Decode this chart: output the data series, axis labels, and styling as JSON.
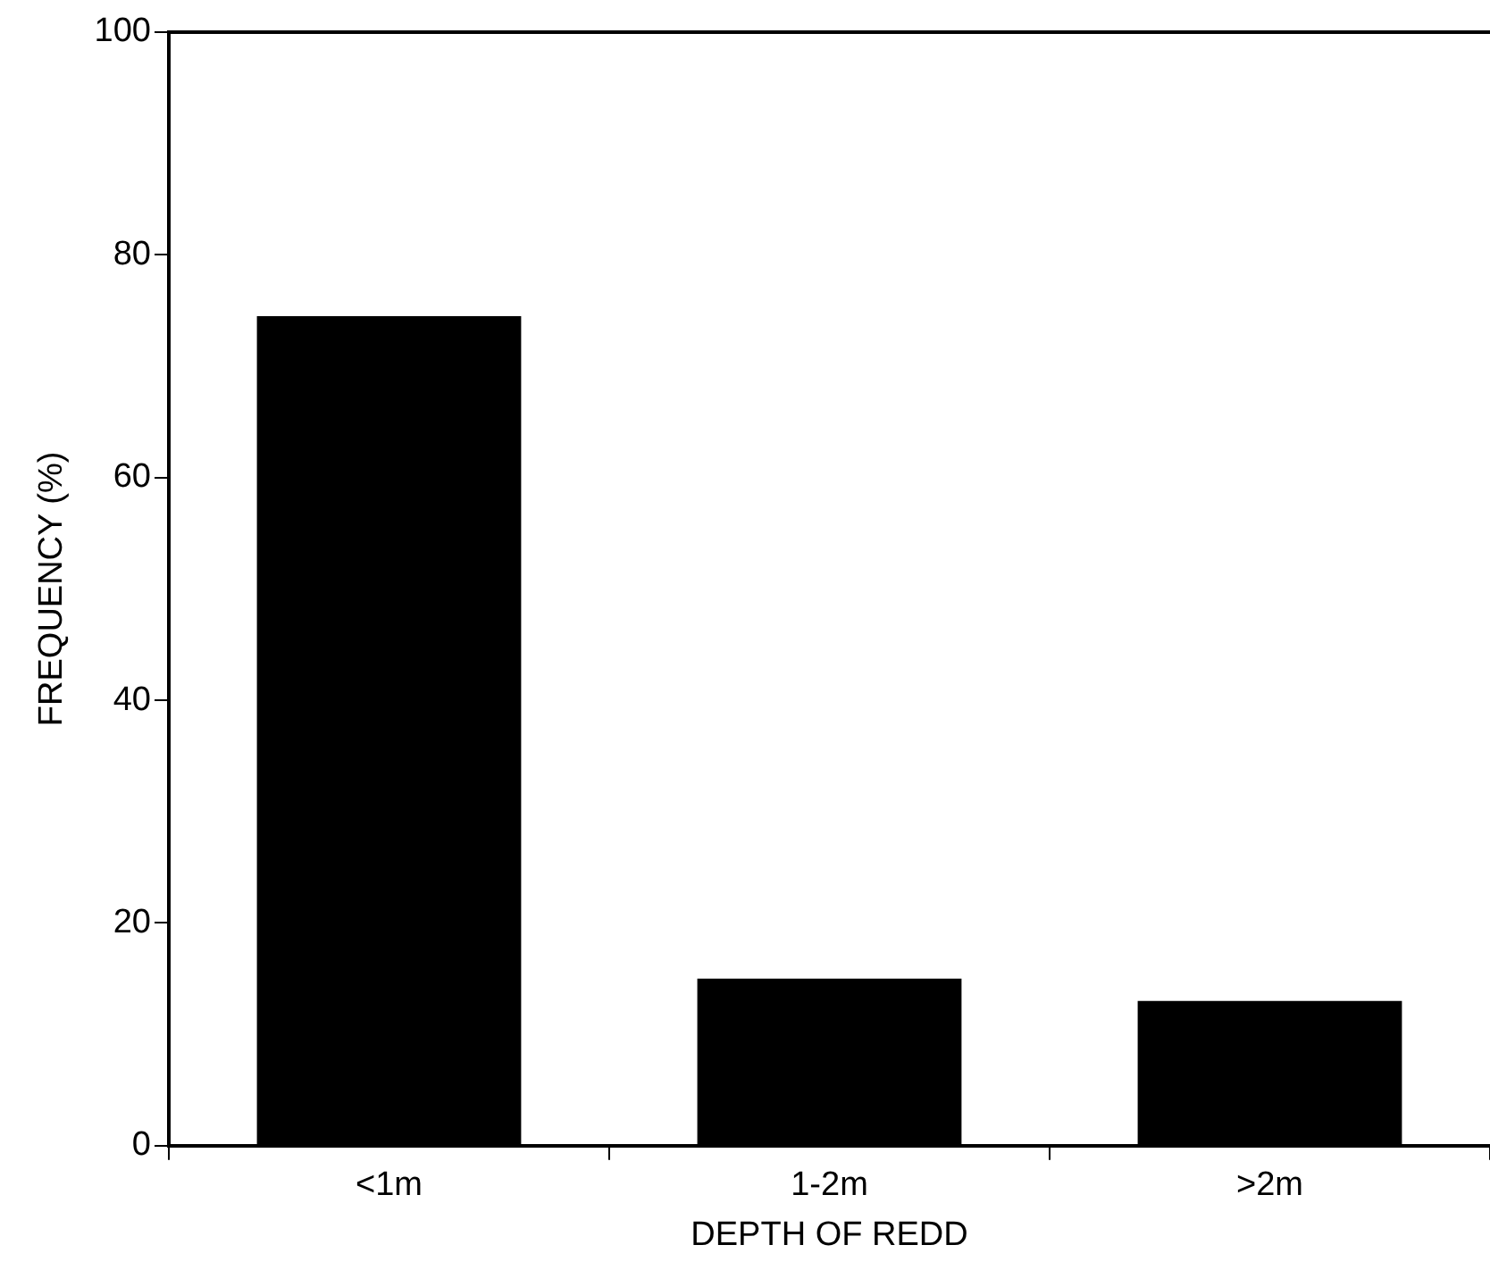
{
  "chart_data": {
    "type": "bar",
    "xlabel": "DEPTH OF REDD",
    "ylabel": "FREQUENCY (%)",
    "categories": [
      "<1m",
      "1-2m",
      ">2m"
    ],
    "values": [
      74.5,
      15,
      13
    ],
    "color": "#000000",
    "ylim": [
      0,
      100
    ],
    "yticks": [
      0,
      20,
      40,
      60,
      80,
      100
    ],
    "grid": false,
    "legend": false
  }
}
